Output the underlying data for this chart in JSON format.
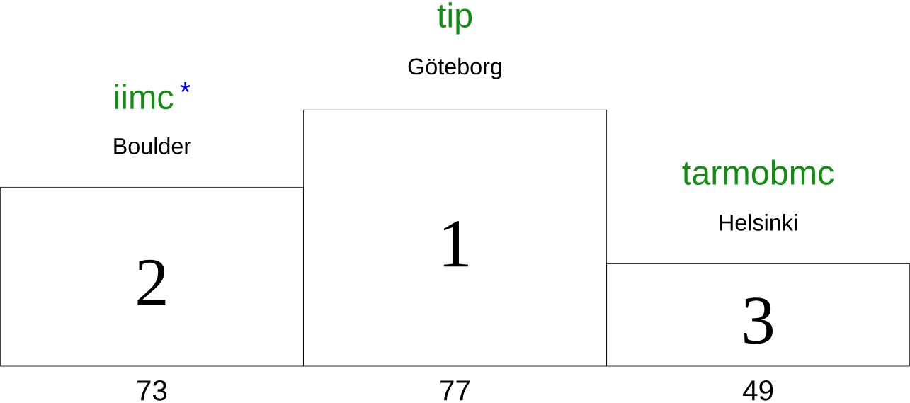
{
  "chart_data": {
    "type": "other",
    "categories": [
      "Boulder",
      "Göteborg",
      "Helsinki"
    ],
    "values": [
      73,
      77,
      49
    ],
    "data_labels": true,
    "annotations": [
      {
        "text": "iimc",
        "x": "Boulder"
      },
      {
        "text": "*",
        "x": "Boulder"
      },
      {
        "text": "2",
        "x": "Boulder"
      },
      {
        "text": "tip",
        "x": "Göteborg"
      },
      {
        "text": "1",
        "x": "Göteborg"
      },
      {
        "text": "tarmobmc",
        "x": "Helsinki"
      },
      {
        "text": "3",
        "x": "Helsinki"
      }
    ]
  }
}
